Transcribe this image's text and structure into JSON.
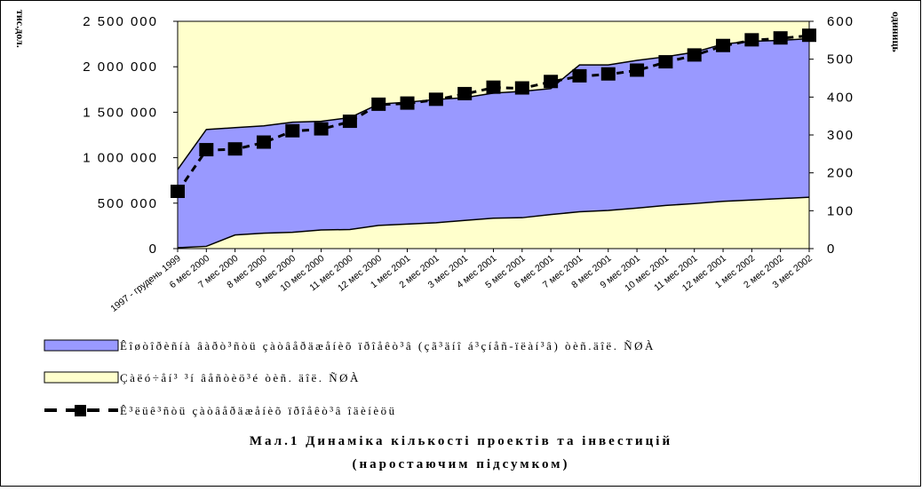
{
  "chart_data": {
    "type": "area",
    "left_axis_label": "тис.дол.",
    "right_axis_label": "одиниць",
    "categories": [
      "1997 - грудень 1999",
      "6 мес 2000",
      "7 мес 2000",
      "8 мес 2000",
      "9 мес 2000",
      "10 мес 2000",
      "11 мес 2000",
      "12 мес 2000",
      "1 мес 2001",
      "2 мес 2001",
      "3 мес 2001",
      "4 мес 2001",
      "5 мес 2001",
      "6 мес 2001",
      "7 мес 2001",
      "8 мес 2001",
      "9 мес 2001",
      "10 мес 2001",
      "11 мес 2001",
      "12 мес 2001",
      "1 мес 2002",
      "2 мес 2002",
      "3 мес 2002"
    ],
    "left_ylim": [
      0,
      2500000
    ],
    "left_yticks": [
      "2 500 000",
      "2 000 000",
      "1 500 000",
      "1 000 000",
      "500 000",
      "0"
    ],
    "right_ylim": [
      0,
      600
    ],
    "right_yticks": [
      "600",
      "500",
      "400",
      "300",
      "200",
      "100",
      "0"
    ],
    "series": [
      {
        "name": "Êîøòîðèñíà âàðò³ñòü çàòâåðäæåíèõ ïðîåêò³â (çã³äíî á³çíåñ-ïëàí³â) òèñ.äîë. ÑØÀ",
        "axis": "left",
        "style": "area",
        "color": "#9999ff",
        "values": [
          870000,
          1310000,
          1330000,
          1350000,
          1390000,
          1400000,
          1440000,
          1590000,
          1610000,
          1640000,
          1660000,
          1710000,
          1730000,
          1760000,
          2020000,
          2020000,
          2070000,
          2110000,
          2160000,
          2250000,
          2280000,
          2290000,
          2310000
        ]
      },
      {
        "name": "Çàëó÷åí³ ³í âåñòèö³é òèñ. äîë. ÑØÀ",
        "axis": "left",
        "style": "area",
        "color": "#ffffcc",
        "values": [
          10000,
          25000,
          150000,
          170000,
          180000,
          205000,
          210000,
          255000,
          270000,
          285000,
          310000,
          335000,
          340000,
          375000,
          405000,
          420000,
          445000,
          475000,
          495000,
          520000,
          535000,
          550000,
          565000
        ]
      },
      {
        "name": "Ê³ëüê³ñòü çàòâåðäæåíèõ ïðîåêò³â îäèíèöü",
        "axis": "right",
        "style": "line-markers",
        "color": "#000000",
        "values": [
          150,
          260,
          262,
          280,
          310,
          315,
          335,
          380,
          383,
          393,
          408,
          425,
          423,
          440,
          455,
          460,
          470,
          492,
          510,
          535,
          550,
          555,
          562
        ]
      }
    ],
    "grid": false
  },
  "caption": {
    "line1": "Мал.1 Динаміка кількості проектів та інвестицій",
    "line2": "(наростаючим підсумком)"
  }
}
